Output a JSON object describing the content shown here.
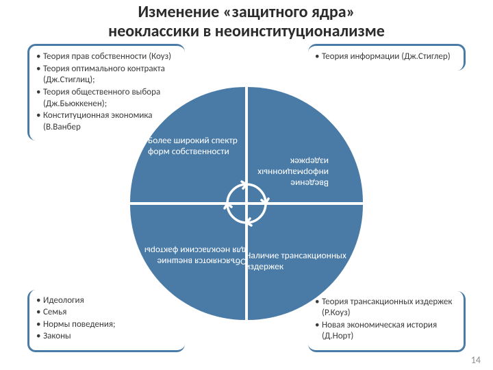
{
  "title_line1": "Изменение «защитного ядра»",
  "title_line2": "неоклассики в неоинституционализме",
  "title_fontsize": 24,
  "title_color": "#2b2b2b",
  "page_number": "14",
  "circle": {
    "fill": "#4a7ba6",
    "gap_color": "#ffffff",
    "diameter": 340,
    "labels": {
      "tl": "Более широкий спектр форм собственности",
      "tr": "Введение информационных издержек",
      "bl": "Объясняются внешние для неоклассики факторы",
      "br": "Наличие трансакционных издержек"
    },
    "label_color": "#ffffff",
    "arrow_stroke": "#ffffff"
  },
  "boxes": {
    "border_color": "#4a7ba6",
    "tl": {
      "items": [
        "Теория прав собственности (Коуз)",
        "Теория оптимального контракта (Дж.Стиглиц);",
        "Теория общественного выбора (Дж.Бьюккенен);",
        "Конституционная экономика (В.Ванбер"
      ]
    },
    "tr": {
      "items": [
        "Теория информации (Дж.Стиглер)"
      ]
    },
    "bl": {
      "items": [
        "Идеология",
        "Семья",
        "Нормы поведения;",
        "Законы"
      ]
    },
    "br": {
      "items": [
        "Теория трансакционных издержек (Р.Коуз)",
        "Новая экономическая история (Д.Норт)"
      ]
    }
  }
}
